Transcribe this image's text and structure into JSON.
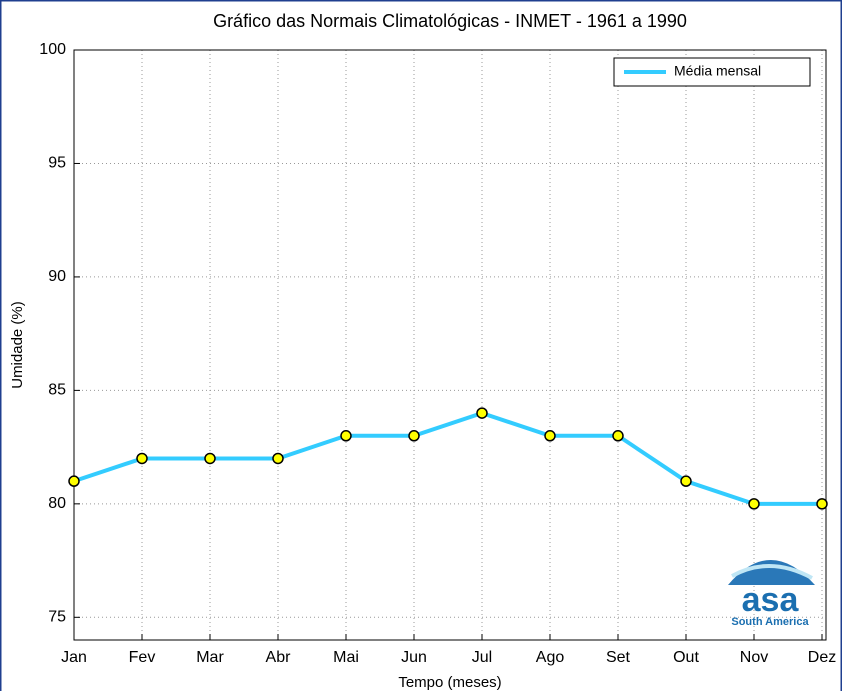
{
  "chart_data": {
    "type": "line",
    "title": "Gráfico das Normais Climatológicas - INMET - 1961 a 1990",
    "xlabel": "Tempo (meses)",
    "ylabel": "Umidade (%)",
    "categories": [
      "Jan",
      "Fev",
      "Mar",
      "Abr",
      "Mai",
      "Jun",
      "Jul",
      "Ago",
      "Set",
      "Out",
      "Nov",
      "Dez"
    ],
    "series": [
      {
        "name": "Média mensal",
        "color": "#33ccff",
        "marker_color": "#ffff00",
        "values": [
          81,
          82,
          82,
          82,
          83,
          83,
          84,
          83,
          83,
          81,
          80,
          80
        ]
      }
    ],
    "ylim": [
      74,
      100
    ],
    "yticks": [
      75,
      80,
      85,
      90,
      95,
      100
    ],
    "grid": true,
    "legend": "upper right",
    "logo": {
      "main": "asa",
      "sub": "South America"
    }
  }
}
